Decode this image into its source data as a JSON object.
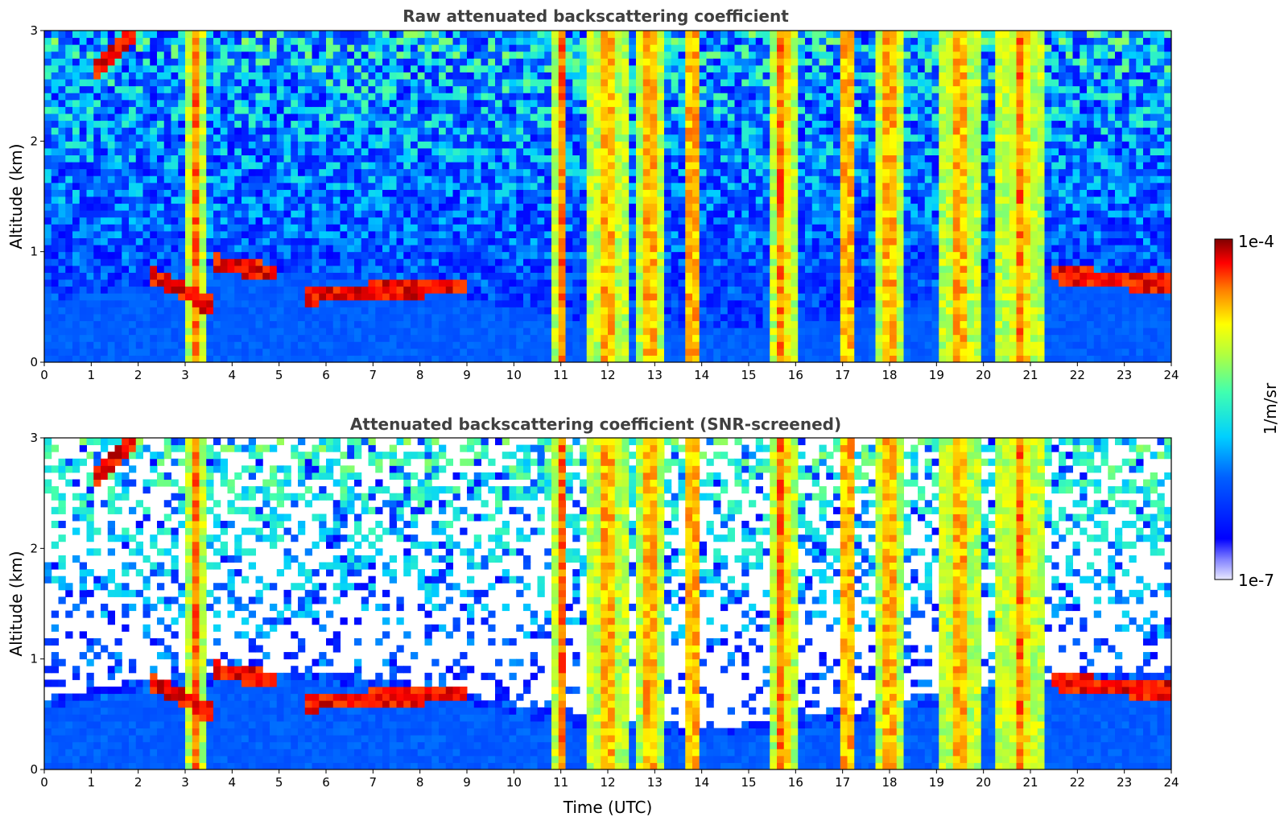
{
  "chart_data": [
    {
      "type": "heatmap",
      "title": "Raw attenuated backscattering coefficient",
      "xlabel": "",
      "ylabel": "Altitude (km)",
      "xlim": [
        0,
        24
      ],
      "ylim": [
        0,
        3
      ],
      "x_ticks": [
        "0",
        "1",
        "2",
        "3",
        "4",
        "5",
        "6",
        "7",
        "8",
        "9",
        "10",
        "11",
        "12",
        "13",
        "14",
        "15",
        "16",
        "17",
        "18",
        "19",
        "20",
        "21",
        "22",
        "23",
        "24"
      ],
      "y_ticks": [
        "0",
        "1",
        "2",
        "3"
      ],
      "color_scale": "log",
      "color_range": [
        1e-07,
        0.0001
      ],
      "cloud_layers": [
        {
          "t_start": 1.0,
          "t_end": 2.0,
          "alt_start": 2.6,
          "alt_end": 3.0
        },
        {
          "t_start": 2.2,
          "t_end": 3.6,
          "alt_start": 0.8,
          "alt_end": 0.5
        },
        {
          "t_start": 3.6,
          "t_end": 5.0,
          "alt_start": 0.9,
          "alt_end": 0.8
        },
        {
          "t_start": 5.5,
          "t_end": 9.0,
          "alt_start": 0.6,
          "alt_end": 0.7
        },
        {
          "t_start": 21.5,
          "t_end": 24.0,
          "alt_start": 0.8,
          "alt_end": 0.7
        }
      ],
      "precip_columns": [
        {
          "t": 3.2,
          "width": 0.2
        },
        {
          "t": 11.0,
          "width": 0.15
        },
        {
          "t": 12.0,
          "width": 0.4
        },
        {
          "t": 12.9,
          "width": 0.3
        },
        {
          "t": 13.8,
          "width": 0.2
        },
        {
          "t": 15.7,
          "width": 0.3
        },
        {
          "t": 17.1,
          "width": 0.2
        },
        {
          "t": 18.0,
          "width": 0.35
        },
        {
          "t": 19.5,
          "width": 0.4
        },
        {
          "t": 20.8,
          "width": 0.5
        }
      ]
    },
    {
      "type": "heatmap",
      "title": "Attenuated backscattering coefficient (SNR-screened)",
      "xlabel": "Time (UTC)",
      "ylabel": "Altitude (km)",
      "xlim": [
        0,
        24
      ],
      "ylim": [
        0,
        3
      ],
      "x_ticks": [
        "0",
        "1",
        "2",
        "3",
        "4",
        "5",
        "6",
        "7",
        "8",
        "9",
        "10",
        "11",
        "12",
        "13",
        "14",
        "15",
        "16",
        "17",
        "18",
        "19",
        "20",
        "21",
        "22",
        "23",
        "24"
      ],
      "y_ticks": [
        "0",
        "1",
        "2",
        "3"
      ],
      "color_scale": "log",
      "color_range": [
        1e-07,
        0.0001
      ]
    }
  ],
  "colorbar": {
    "label": "1/m/sr",
    "max_label": "1e-4",
    "min_label": "1e-7"
  }
}
